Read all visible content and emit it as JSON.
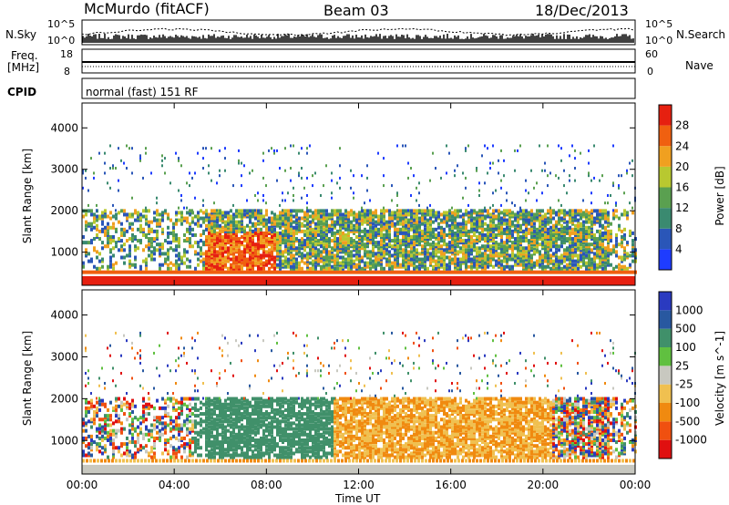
{
  "header": {
    "station": "McMurdo (fitACF)",
    "beam": "Beam 03",
    "date": "18/Dec/2013"
  },
  "side_labels": {
    "nsky": "N.Sky",
    "nsearch": "N.Search",
    "freq_line1": "Freq.",
    "freq_line2": "[MHz]",
    "nave": "Nave",
    "cpid": "CPID"
  },
  "noise_panel": {
    "left_ticks": [
      "10^5",
      "10^0"
    ],
    "right_ticks": [
      "10^5",
      "10^0"
    ]
  },
  "freq_panel": {
    "left_ticks": [
      "18",
      "8"
    ],
    "right_ticks": [
      "60",
      "0"
    ]
  },
  "cpid_text": "normal (fast) 151 RF",
  "colors": {
    "power_scale": [
      "#1e3cff",
      "#2a56b8",
      "#3a8a70",
      "#5aa050",
      "#b8c830",
      "#f0a020",
      "#f06010",
      "#e62010"
    ],
    "velocity_scale": [
      "#e01010",
      "#f05010",
      "#f08a10",
      "#f0c050",
      "#c8c8c0",
      "#60c040",
      "#40906a",
      "#2858a0",
      "#2a3ac0"
    ]
  },
  "chart_data": [
    {
      "type": "heatmap",
      "title": "",
      "ylabel": "Slant Range [km]",
      "xlabel": "",
      "x_ticks": [
        "00:00",
        "04:00",
        "08:00",
        "12:00",
        "16:00",
        "20:00",
        "00:00"
      ],
      "y_ticks": [
        1000,
        2000,
        3000,
        4000
      ],
      "ylim": [
        200,
        4600
      ],
      "colorbar": {
        "label": "Power [dB]",
        "ticks": [
          4,
          8,
          12,
          16,
          20,
          24,
          28
        ]
      }
    },
    {
      "type": "heatmap",
      "title": "",
      "ylabel": "Slant Range [km]",
      "xlabel": "Time UT",
      "x_ticks": [
        "00:00",
        "04:00",
        "08:00",
        "12:00",
        "16:00",
        "20:00",
        "00:00"
      ],
      "y_ticks": [
        1000,
        2000,
        3000,
        4000
      ],
      "ylim": [
        200,
        4600
      ],
      "colorbar": {
        "label": "Velocity [m s^-1]",
        "ticks": [
          -1000,
          -500,
          -100,
          -25,
          25,
          100,
          500,
          1000
        ]
      }
    }
  ]
}
